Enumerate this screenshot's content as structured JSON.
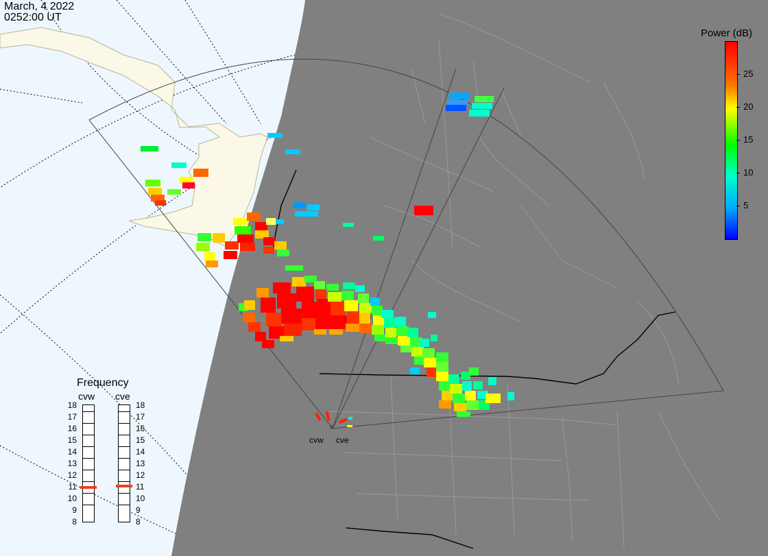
{
  "header": {
    "date": "March, 4 2022",
    "time": "0252:00 UT"
  },
  "colorbar": {
    "title": "Power (dB)",
    "ticks": [
      "25",
      "20",
      "15",
      "10",
      "5"
    ],
    "tick_values": [
      25,
      20,
      15,
      10,
      5
    ],
    "range": [
      0,
      30
    ],
    "colors": [
      "#0000ff",
      "#00aaff",
      "#00ffcc",
      "#00ff00",
      "#ffff00",
      "#ff7700",
      "#ff0000"
    ]
  },
  "frequency": {
    "title": "Frequency",
    "radars": [
      {
        "label": "cvw",
        "selected_mhz": 10.9
      },
      {
        "label": "cve",
        "selected_mhz": 11.0
      }
    ],
    "scale": [
      "18",
      "17",
      "16",
      "15",
      "14",
      "13",
      "12",
      "11",
      "10",
      "9",
      "8"
    ],
    "marker_color": "#e8421c"
  },
  "sites": [
    {
      "label": "cvw"
    },
    {
      "label": "cve"
    }
  ],
  "map_colors": {
    "ocean_day": "#eef7fd",
    "land_day": "#fbf8e7",
    "night": "#808080",
    "boundaries_night": "#9a9a9a",
    "country_borders": "#000000"
  }
}
